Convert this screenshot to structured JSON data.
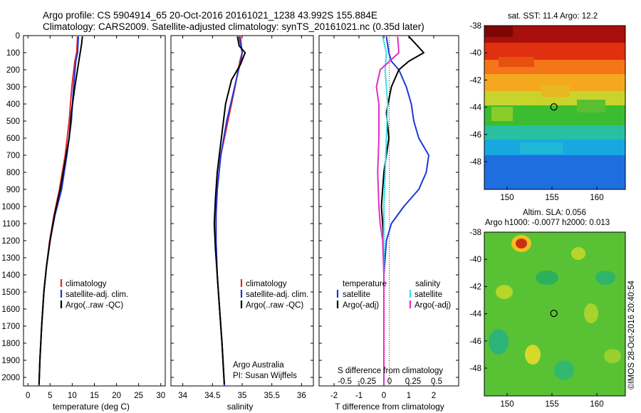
{
  "header": {
    "title_line1": "Argo profile: CS 5904914_65 20-Oct-2016 20161021_1238 43.992S 155.884E",
    "title_line2": "Climatology: CARS2009. Satellite-adjusted climatology: synTS_20161021.nc (0.35d later)"
  },
  "colors": {
    "climatology": "#e8262b",
    "satellite": "#1f37d6",
    "argo": "#000000",
    "sal_satellite": "#3ee0e8",
    "sal_argo": "#e030c8"
  },
  "chart_data": [
    {
      "type": "line",
      "xlabel": "temperature (deg C)",
      "ylabel": "",
      "xlim": [
        -1,
        31
      ],
      "ylim": [
        2050,
        0
      ],
      "xticks": [
        0,
        5,
        10,
        15,
        20,
        25,
        30
      ],
      "yticks": [
        0,
        100,
        200,
        300,
        400,
        500,
        600,
        700,
        800,
        900,
        1000,
        1100,
        1200,
        1300,
        1400,
        1500,
        1600,
        1700,
        1800,
        1900,
        2000
      ],
      "legend": [
        "climatology",
        "satellite-adj. clim.",
        "Argo(..raw -QC)"
      ],
      "legend_position": "lower-right",
      "series": [
        {
          "name": "climatology",
          "color": "#e8262b",
          "points": [
            [
              11.2,
              5
            ],
            [
              11.0,
              100
            ],
            [
              10.6,
              150
            ],
            [
              9.9,
              300
            ],
            [
              9.3,
              500
            ],
            [
              8.4,
              700
            ],
            [
              7.1,
              900
            ],
            [
              5.9,
              1050
            ],
            [
              4.9,
              1200
            ],
            [
              4.2,
              1350
            ],
            [
              3.6,
              1500
            ],
            [
              3.1,
              1700
            ],
            [
              2.7,
              1900
            ],
            [
              2.5,
              2050
            ]
          ]
        },
        {
          "name": "satellite-adj. clim.",
          "color": "#1f37d6",
          "points": [
            [
              11.4,
              5
            ],
            [
              11.2,
              100
            ],
            [
              10.8,
              150
            ],
            [
              10.3,
              300
            ],
            [
              9.8,
              500
            ],
            [
              8.8,
              700
            ],
            [
              7.6,
              900
            ],
            [
              6.1,
              1050
            ],
            [
              5.0,
              1200
            ],
            [
              4.2,
              1350
            ],
            [
              3.6,
              1500
            ],
            [
              3.1,
              1700
            ],
            [
              2.7,
              1900
            ],
            [
              2.5,
              2050
            ]
          ]
        },
        {
          "name": "Argo(..raw -QC)",
          "color": "#000000",
          "points": [
            [
              12.3,
              5
            ],
            [
              12.1,
              50
            ],
            [
              11.5,
              150
            ],
            [
              10.6,
              300
            ],
            [
              9.8,
              450
            ],
            [
              9.3,
              600
            ],
            [
              8.3,
              750
            ],
            [
              7.3,
              900
            ],
            [
              6.0,
              1050
            ],
            [
              5.0,
              1200
            ],
            [
              4.2,
              1350
            ],
            [
              3.6,
              1500
            ],
            [
              3.1,
              1700
            ],
            [
              2.7,
              1900
            ],
            [
              2.5,
              2040
            ]
          ]
        }
      ]
    },
    {
      "type": "line",
      "xlabel": "salinity",
      "xlim": [
        33.8,
        36.2
      ],
      "ylim": [
        2050,
        0
      ],
      "xticks": [
        34,
        34.5,
        35,
        35.5,
        36
      ],
      "legend": [
        "climatology",
        "satellite-adj. clim.",
        "Argo(..raw -QC)"
      ],
      "legend_position": "lower-right",
      "annotation": [
        "Argo Australia",
        "PI: Susan Wijffels"
      ],
      "series": [
        {
          "name": "climatology",
          "color": "#e8262b",
          "points": [
            [
              34.97,
              5
            ],
            [
              35.0,
              100
            ],
            [
              34.96,
              150
            ],
            [
              34.88,
              300
            ],
            [
              34.76,
              500
            ],
            [
              34.64,
              700
            ],
            [
              34.58,
              900
            ],
            [
              34.56,
              1050
            ],
            [
              34.56,
              1200
            ],
            [
              34.58,
              1400
            ],
            [
              34.62,
              1600
            ],
            [
              34.66,
              1800
            ],
            [
              34.7,
              2050
            ]
          ]
        },
        {
          "name": "satellite-adj. clim.",
          "color": "#1f37d6",
          "points": [
            [
              34.95,
              5
            ],
            [
              35.0,
              100
            ],
            [
              34.98,
              150
            ],
            [
              34.94,
              200
            ],
            [
              34.84,
              350
            ],
            [
              34.74,
              500
            ],
            [
              34.64,
              700
            ],
            [
              34.58,
              900
            ],
            [
              34.56,
              1050
            ],
            [
              34.56,
              1200
            ],
            [
              34.58,
              1400
            ],
            [
              34.62,
              1600
            ],
            [
              34.66,
              1800
            ],
            [
              34.7,
              2050
            ]
          ]
        },
        {
          "name": "Argo(..raw -QC)",
          "color": "#000000",
          "points": [
            [
              34.92,
              5
            ],
            [
              34.95,
              60
            ],
            [
              35.05,
              100
            ],
            [
              34.97,
              170
            ],
            [
              34.82,
              260
            ],
            [
              34.72,
              400
            ],
            [
              34.65,
              600
            ],
            [
              34.58,
              800
            ],
            [
              34.55,
              950
            ],
            [
              34.53,
              1100
            ],
            [
              34.55,
              1250
            ],
            [
              34.58,
              1400
            ],
            [
              34.62,
              1600
            ],
            [
              34.66,
              1800
            ],
            [
              34.7,
              2040
            ]
          ]
        }
      ]
    },
    {
      "type": "line",
      "xlabel": "T difference from climatology",
      "xlim": [
        -2.6,
        3.0
      ],
      "ylim": [
        2050,
        0
      ],
      "xticks": [
        -2,
        -1,
        0,
        1,
        2
      ],
      "top_axis_label": "S difference from climatology",
      "top_xticks": [
        "-0.5",
        "-0.25",
        "0",
        "0.25",
        "0.5"
      ],
      "legend_temperature_title": "temperature",
      "legend_salinity_title": "salinity",
      "legend": [
        "satellite",
        "Argo(-adj)",
        "satellite",
        "Argo(-adj)"
      ],
      "series": [
        {
          "name": "temperature satellite",
          "color": "#1f37d6",
          "points": [
            [
              0.1,
              5
            ],
            [
              0.2,
              100
            ],
            [
              0.3,
              150
            ],
            [
              0.6,
              200
            ],
            [
              0.9,
              300
            ],
            [
              1.1,
              400
            ],
            [
              1.2,
              500
            ],
            [
              1.4,
              600
            ],
            [
              1.8,
              700
            ],
            [
              1.7,
              800
            ],
            [
              1.4,
              900
            ],
            [
              0.8,
              1000
            ],
            [
              0.3,
              1100
            ],
            [
              0.1,
              1200
            ],
            [
              0.0,
              1400
            ],
            [
              0.0,
              2040
            ]
          ]
        },
        {
          "name": "temperature Argo(-adj)",
          "color": "#000000",
          "points": [
            [
              1.0,
              5
            ],
            [
              1.6,
              100
            ],
            [
              1.0,
              150
            ],
            [
              0.6,
              200
            ],
            [
              0.3,
              300
            ],
            [
              0.1,
              450
            ],
            [
              0.2,
              600
            ],
            [
              0.0,
              800
            ],
            [
              -0.1,
              1000
            ],
            [
              0.0,
              1200
            ],
            [
              0.0,
              1400
            ],
            [
              0.0,
              2040
            ]
          ]
        },
        {
          "name": "salinity satellite",
          "color": "#3ee0e8",
          "points": [
            [
              -0.05,
              5
            ],
            [
              0.1,
              100
            ],
            [
              0.05,
              200
            ],
            [
              0.1,
              300
            ],
            [
              0.15,
              400
            ],
            [
              0.1,
              600
            ],
            [
              0.05,
              800
            ],
            [
              0.0,
              1000
            ],
            [
              0.0,
              2040
            ]
          ]
        },
        {
          "name": "salinity Argo(-adj)",
          "color": "#e030c8",
          "points": [
            [
              0.55,
              5
            ],
            [
              0.6,
              100
            ],
            [
              -0.15,
              200
            ],
            [
              -0.3,
              300
            ],
            [
              -0.2,
              400
            ],
            [
              -0.2,
              600
            ],
            [
              -0.25,
              800
            ],
            [
              -0.2,
              1000
            ],
            [
              -0.15,
              1100
            ],
            [
              -0.05,
              1200
            ],
            [
              0.0,
              1400
            ],
            [
              0.0,
              2040
            ]
          ]
        }
      ]
    }
  ],
  "map_sst": {
    "title": "sat. SST: 11.4  Argo: 12.2",
    "xticks": [
      "150",
      "155",
      "160"
    ],
    "yticks": [
      "-38",
      "-40",
      "-42",
      "-44",
      "-46",
      "-48"
    ]
  },
  "map_sla": {
    "title1": "Altim. SLA: 0.056",
    "title2": "Argo h1000: -0.0077 h2000: 0.013",
    "xticks": [
      "150",
      "155",
      "160"
    ],
    "yticks": [
      "-38",
      "-40",
      "-42",
      "-44",
      "-46",
      "-48"
    ]
  },
  "credit": "©IMOS 28-Oct-2016 20:40:54"
}
